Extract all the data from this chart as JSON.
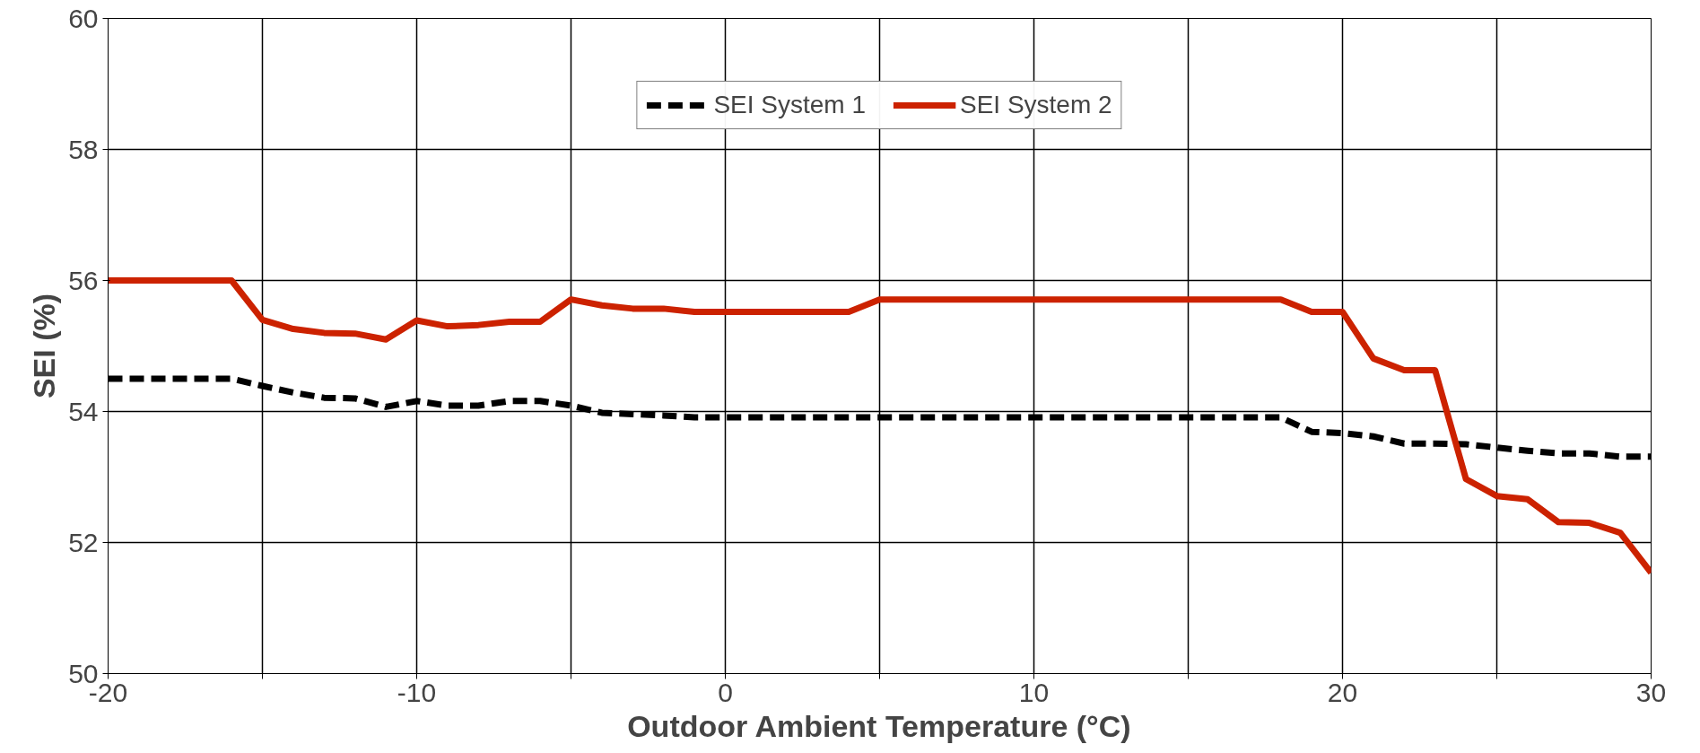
{
  "chart_data": {
    "type": "line",
    "xlabel": "Outdoor Ambient Temperature (°C)",
    "ylabel": "SEI (%)",
    "x": [
      -20,
      -19,
      -18,
      -17,
      -16,
      -15,
      -14,
      -13,
      -12,
      -11,
      -10,
      -9,
      -8,
      -7,
      -6,
      -5,
      -4,
      -3,
      -2,
      -1,
      0,
      1,
      2,
      3,
      4,
      5,
      6,
      7,
      8,
      9,
      10,
      11,
      12,
      13,
      14,
      15,
      16,
      17,
      18,
      19,
      20,
      21,
      22,
      23,
      24,
      25,
      26,
      27,
      28,
      29,
      30
    ],
    "series": [
      {
        "name": "SEI System 1",
        "color": "#000000",
        "line_style": "dashed",
        "values": [
          54.5,
          54.5,
          54.5,
          54.5,
          54.5,
          54.39,
          54.29,
          54.21,
          54.2,
          54.07,
          54.16,
          54.09,
          54.09,
          54.16,
          54.16,
          54.09,
          53.98,
          53.96,
          53.94,
          53.91,
          53.91,
          53.91,
          53.91,
          53.91,
          53.91,
          53.91,
          53.91,
          53.91,
          53.91,
          53.91,
          53.91,
          53.91,
          53.91,
          53.91,
          53.91,
          53.91,
          53.91,
          53.91,
          53.91,
          53.69,
          53.67,
          53.62,
          53.51,
          53.51,
          53.5,
          53.45,
          53.4,
          53.36,
          53.36,
          53.31,
          53.31
        ]
      },
      {
        "name": "SEI System 2",
        "color": "#cc2200",
        "line_style": "solid",
        "values": [
          56.0,
          56.0,
          56.0,
          56.0,
          56.0,
          55.4,
          55.26,
          55.2,
          55.19,
          55.1,
          55.39,
          55.3,
          55.32,
          55.37,
          55.37,
          55.71,
          55.62,
          55.57,
          55.57,
          55.52,
          55.52,
          55.52,
          55.52,
          55.52,
          55.52,
          55.71,
          55.71,
          55.71,
          55.71,
          55.71,
          55.71,
          55.71,
          55.71,
          55.71,
          55.71,
          55.71,
          55.71,
          55.71,
          55.71,
          55.52,
          55.52,
          54.81,
          54.63,
          54.63,
          52.97,
          52.71,
          52.66,
          52.31,
          52.3,
          52.15,
          51.54
        ]
      }
    ],
    "xlim": [
      -20,
      30
    ],
    "xticks": [
      -20,
      {
        "value": -15,
        "label": null
      },
      -10,
      {
        "value": -5,
        "label": null
      },
      0,
      {
        "value": 5,
        "label": null
      },
      10,
      {
        "value": 15,
        "label": null
      },
      20,
      {
        "value": 25,
        "label": null
      },
      30
    ],
    "ylim": [
      50,
      60
    ],
    "yticks": [
      50,
      52,
      54,
      56,
      58,
      60
    ],
    "grid": true,
    "legend": "top",
    "marker": "none"
  }
}
